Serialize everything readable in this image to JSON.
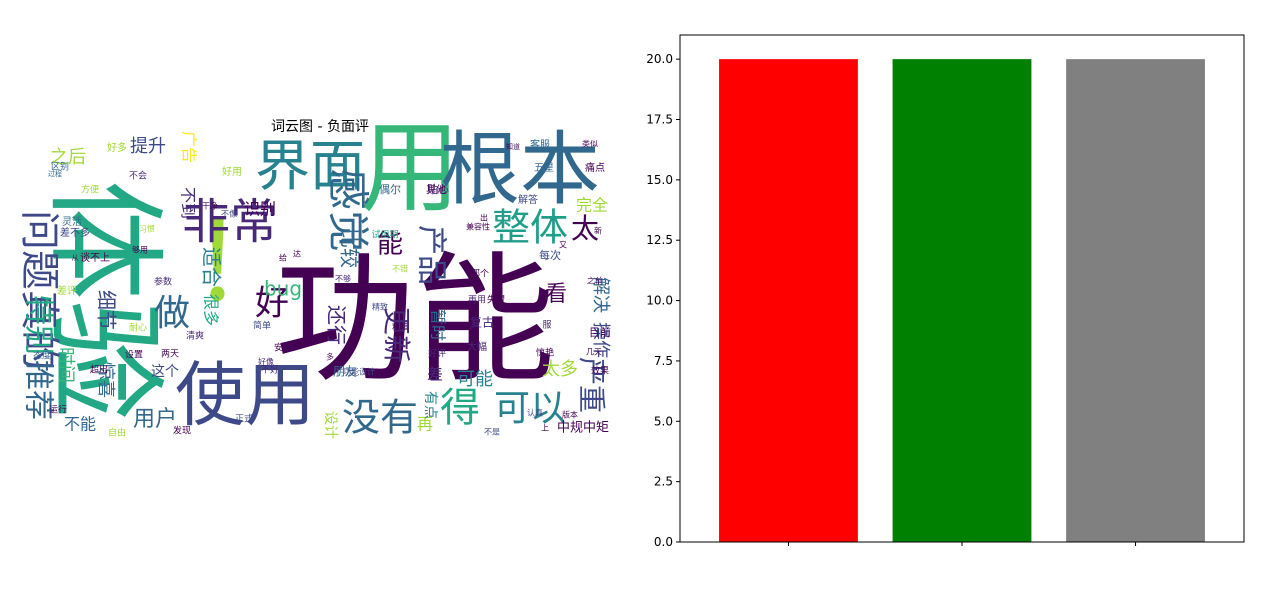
{
  "wordcloud": {
    "title": "词云图 - 负面评",
    "words": [
      {
        "text": "功能",
        "size": 140,
        "color": "#440154"
      },
      {
        "text": "体验",
        "size": 120,
        "color": "#22a884"
      },
      {
        "text": "！",
        "size": 110,
        "color": "#a0da39"
      },
      {
        "text": "用",
        "size": 100,
        "color": "#35b779"
      },
      {
        "text": "根本",
        "size": 80,
        "color": "#31688e"
      },
      {
        "text": "使用",
        "size": 70,
        "color": "#3e4989"
      },
      {
        "text": "界面",
        "size": 55,
        "color": "#26828e"
      },
      {
        "text": "非常",
        "size": 48,
        "color": "#482878"
      },
      {
        "text": "感觉",
        "size": 42,
        "color": "#31688e"
      },
      {
        "text": "问题真的",
        "size": 40,
        "color": "#3e4989"
      },
      {
        "text": "整体",
        "size": 38,
        "color": "#1f9e89"
      },
      {
        "text": "没有",
        "size": 38,
        "color": "#31688e"
      },
      {
        "text": "得",
        "size": 40,
        "color": "#22a884"
      },
      {
        "text": "可以",
        "size": 36,
        "color": "#26828e"
      },
      {
        "text": "做",
        "size": 36,
        "color": "#31688e"
      },
      {
        "text": "好",
        "size": 34,
        "color": "#440154"
      },
      {
        "text": "产品",
        "size": 30,
        "color": "#3e4989"
      },
      {
        "text": "特别",
        "size": 30,
        "color": "#22a884"
      },
      {
        "text": "推荐",
        "size": 30,
        "color": "#31688e"
      },
      {
        "text": "更新",
        "size": 28,
        "color": "#482878"
      },
      {
        "text": "严重",
        "size": 28,
        "color": "#3e4989"
      },
      {
        "text": "太",
        "size": 28,
        "color": "#440154"
      },
      {
        "text": "能",
        "size": 26,
        "color": "#440154"
      },
      {
        "text": "看",
        "size": 22,
        "color": "#440154"
      },
      {
        "text": "用户",
        "size": 22,
        "color": "#31688e"
      },
      {
        "text": "bug",
        "size": 20,
        "color": "#35b779"
      },
      {
        "text": "细节",
        "size": 20,
        "color": "#3e4989"
      },
      {
        "text": "比较",
        "size": 20,
        "color": "#31688e"
      },
      {
        "text": "还行",
        "size": 20,
        "color": "#482878"
      },
      {
        "text": "适合",
        "size": 20,
        "color": "#26828e"
      },
      {
        "text": "提升",
        "size": 18,
        "color": "#3e4989"
      },
      {
        "text": "可能",
        "size": 18,
        "color": "#26828e"
      },
      {
        "text": "太多",
        "size": 18,
        "color": "#a0da39"
      },
      {
        "text": "解决",
        "size": 18,
        "color": "#31688e"
      },
      {
        "text": "操作",
        "size": 18,
        "color": "#3e4989"
      },
      {
        "text": "惊喜",
        "size": 18,
        "color": "#31688e"
      },
      {
        "text": "时间",
        "size": 18,
        "color": "#35b779"
      },
      {
        "text": "之后",
        "size": 18,
        "color": "#a0da39"
      },
      {
        "text": "识别",
        "size": 16,
        "color": "#440154"
      },
      {
        "text": "不到",
        "size": 16,
        "color": "#482878"
      },
      {
        "text": "很多",
        "size": 16,
        "color": "#22a884"
      },
      {
        "text": "不能",
        "size": 16,
        "color": "#31688e"
      },
      {
        "text": "完全",
        "size": 16,
        "color": "#a0da39"
      },
      {
        "text": "广告",
        "size": 16,
        "color": "#fde725"
      },
      {
        "text": "再",
        "size": 16,
        "color": "#a0da39"
      },
      {
        "text": "差",
        "size": 16,
        "color": "#482878"
      },
      {
        "text": "暂时",
        "size": 16,
        "color": "#31688e"
      },
      {
        "text": "设计",
        "size": 14,
        "color": "#a0da39"
      },
      {
        "text": "有点",
        "size": 14,
        "color": "#26828e"
      },
      {
        "text": "中规中矩",
        "size": 13,
        "color": "#440154"
      },
      {
        "text": "这个",
        "size": 14,
        "color": "#3e4989"
      },
      {
        "text": "朋友",
        "size": 12,
        "color": "#31688e"
      },
      {
        "text": "复古",
        "size": 12,
        "color": "#482878"
      },
      {
        "text": "大幅",
        "size": 10,
        "color": "#482878"
      },
      {
        "text": "目前",
        "size": 11,
        "color": "#440154"
      },
      {
        "text": "每次",
        "size": 11,
        "color": "#3e4989"
      },
      {
        "text": "偶尔",
        "size": 11,
        "color": "#31688e"
      },
      {
        "text": "贴心",
        "size": 11,
        "color": "#482878"
      },
      {
        "text": "客服",
        "size": 10,
        "color": "#31688e"
      },
      {
        "text": "解答",
        "size": 10,
        "color": "#3e4989"
      },
      {
        "text": "五星",
        "size": 10,
        "color": "#31688e"
      },
      {
        "text": "痛点",
        "size": 10,
        "color": "#440154"
      },
      {
        "text": "其他",
        "size": 10,
        "color": "#440154"
      },
      {
        "text": "好用",
        "size": 10,
        "color": "#a0da39"
      },
      {
        "text": "好多",
        "size": 10,
        "color": "#a0da39"
      },
      {
        "text": "不会",
        "size": 9,
        "color": "#482878"
      },
      {
        "text": "区别",
        "size": 9,
        "color": "#31688e"
      },
      {
        "text": "方便",
        "size": 9,
        "color": "#a0da39"
      },
      {
        "text": "灵活",
        "size": 10,
        "color": "#31688e"
      },
      {
        "text": "差不多",
        "size": 10,
        "color": "#3e4989"
      },
      {
        "text": "谈不上",
        "size": 10,
        "color": "#440154"
      },
      {
        "text": "差评",
        "size": 10,
        "color": "#a0da39"
      },
      {
        "text": "参数",
        "size": 9,
        "color": "#482878"
      },
      {
        "text": "耐心",
        "size": 9,
        "color": "#a0da39"
      },
      {
        "text": "态度",
        "size": 9,
        "color": "#31688e"
      },
      {
        "text": "超出",
        "size": 9,
        "color": "#440154"
      },
      {
        "text": "运行",
        "size": 9,
        "color": "#440154"
      },
      {
        "text": "自由",
        "size": 9,
        "color": "#a0da39"
      },
      {
        "text": "发现",
        "size": 9,
        "color": "#440154"
      },
      {
        "text": "两天",
        "size": 9,
        "color": "#440154"
      },
      {
        "text": "设置",
        "size": 9,
        "color": "#440154"
      },
      {
        "text": "清爽",
        "size": 9,
        "color": "#482878"
      },
      {
        "text": "简单",
        "size": 9,
        "color": "#3e4989"
      },
      {
        "text": "安装",
        "size": 9,
        "color": "#440154"
      },
      {
        "text": "正式",
        "size": 9,
        "color": "#3e4989"
      },
      {
        "text": "不好",
        "size": 9,
        "color": "#482878"
      },
      {
        "text": "干净",
        "size": 8,
        "color": "#440154"
      },
      {
        "text": "不像",
        "size": 8,
        "color": "#3e4989"
      },
      {
        "text": "试用期",
        "size": 9,
        "color": "#22a884"
      },
      {
        "text": "兼容性",
        "size": 8,
        "color": "#440154"
      },
      {
        "text": "那个",
        "size": 9,
        "color": "#440154"
      },
      {
        "text": "再用",
        "size": 9,
        "color": "#482878"
      },
      {
        "text": "失望",
        "size": 9,
        "color": "#440154"
      },
      {
        "text": "好评",
        "size": 9,
        "color": "#482878"
      },
      {
        "text": "不是",
        "size": 8,
        "color": "#3e4989"
      },
      {
        "text": "效果",
        "size": 9,
        "color": "#440154"
      },
      {
        "text": "惊艳",
        "size": 9,
        "color": "#440154"
      },
      {
        "text": "服",
        "size": 9,
        "color": "#482878"
      },
      {
        "text": "版本",
        "size": 8,
        "color": "#440154"
      },
      {
        "text": "认真",
        "size": 8,
        "color": "#3e4989"
      },
      {
        "text": "不够",
        "size": 8,
        "color": "#482878"
      },
      {
        "text": "不错",
        "size": 8,
        "color": "#a0da39"
      },
      {
        "text": "功能设计",
        "size": 8,
        "color": "#3e4989"
      },
      {
        "text": "精致",
        "size": 8,
        "color": "#3e4989"
      },
      {
        "text": "粗糙",
        "size": 8,
        "color": "#440154"
      },
      {
        "text": "好像",
        "size": 8,
        "color": "#482878"
      },
      {
        "text": "之前",
        "size": 8,
        "color": "#440154"
      },
      {
        "text": "几天",
        "size": 8,
        "color": "#440154"
      },
      {
        "text": "类似",
        "size": 8,
        "color": "#440154"
      },
      {
        "text": "知道",
        "size": 7,
        "color": "#440154"
      },
      {
        "text": "上",
        "size": 8,
        "color": "#440154"
      },
      {
        "text": "又",
        "size": 8,
        "color": "#440154"
      },
      {
        "text": "新",
        "size": 8,
        "color": "#440154"
      },
      {
        "text": "出",
        "size": 8,
        "color": "#440154"
      },
      {
        "text": "多",
        "size": 8,
        "color": "#440154"
      },
      {
        "text": "达",
        "size": 8,
        "color": "#440154"
      },
      {
        "text": "给",
        "size": 8,
        "color": "#440154"
      },
      {
        "text": "从",
        "size": 7,
        "color": "#440154"
      },
      {
        "text": "习惯",
        "size": 8,
        "color": "#a0da39"
      },
      {
        "text": "过程",
        "size": 7,
        "color": "#31688e"
      },
      {
        "text": "够用",
        "size": 8,
        "color": "#440154"
      }
    ]
  },
  "chart_data": {
    "type": "bar",
    "title": "",
    "categories": [
      "",
      "",
      ""
    ],
    "values": [
      20,
      20,
      20
    ],
    "colors": [
      "#ff0000",
      "#008000",
      "#808080"
    ],
    "xlabel": "",
    "ylabel": "",
    "ylim": [
      0,
      21
    ],
    "yticks": [
      "0.0",
      "2.5",
      "5.0",
      "7.5",
      "10.0",
      "12.5",
      "15.0",
      "17.5",
      "20.0"
    ],
    "ytick_values": [
      0,
      2.5,
      5,
      7.5,
      10,
      12.5,
      15,
      17.5,
      20
    ],
    "grid": false
  }
}
